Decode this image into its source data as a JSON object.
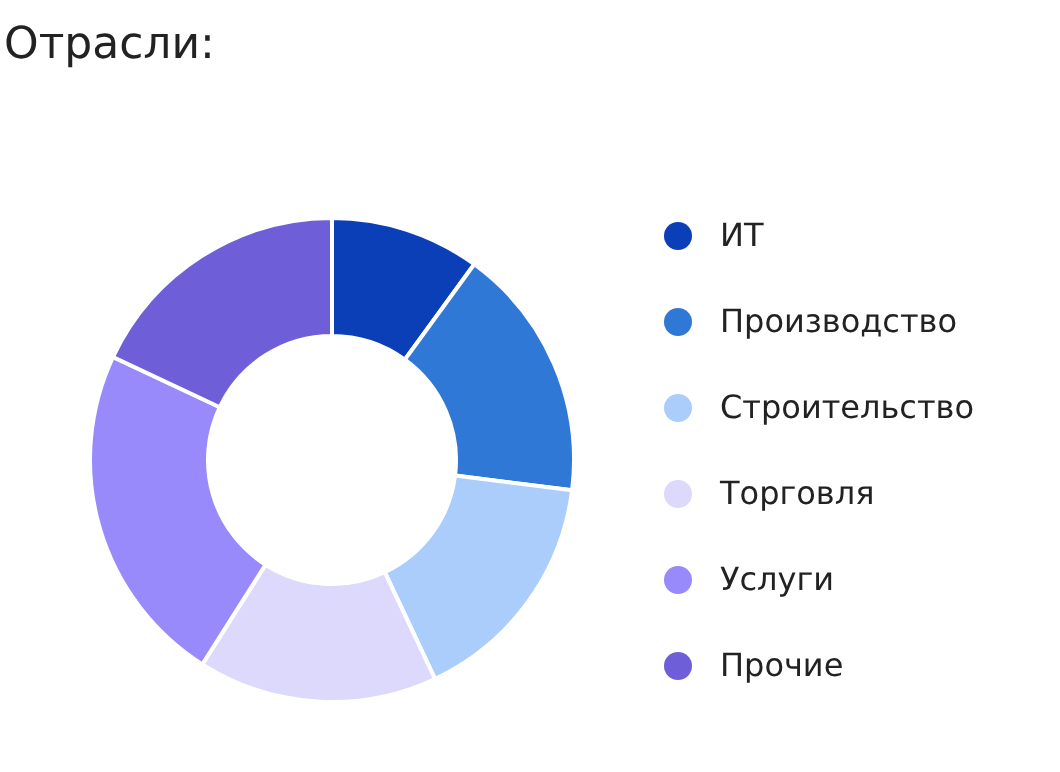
{
  "chart_data": {
    "type": "donut",
    "title": "Отрасли:",
    "categories": [
      "ИТ",
      "Производство",
      "Строительство",
      "Торговля",
      "Услуги",
      "Прочие"
    ],
    "values": [
      10,
      17,
      16,
      16,
      23,
      18
    ],
    "colors": [
      "#0a3fb8",
      "#2f78d6",
      "#aacdfc",
      "#dcd9fd",
      "#998afc",
      "#6e5fd8"
    ],
    "legend": "right"
  }
}
